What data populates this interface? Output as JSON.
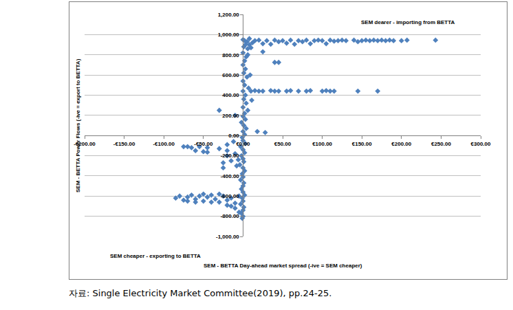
{
  "chart_data": {
    "type": "scatter",
    "x_label": "SEM - BETTA Day-ahead market spread (-ive = SEM cheaper)",
    "y_label": "SEM - BETTA Power Flows (-ive = export to BETTA)",
    "annotations": [
      "SEM dearer - importing from BETTA",
      "SEM cheaper - exporting to BETTA"
    ],
    "source": "자료: Single Electricity Market Committee(2019), pp.24-25.",
    "color": "#4f81bd",
    "marker": "diamond",
    "grid": true,
    "xlim": [
      -200,
      300
    ],
    "ylim": [
      -1000,
      1200
    ],
    "xticks": [
      {
        "value": -200,
        "label": "-€200.00"
      },
      {
        "value": -150,
        "label": "-€150.00"
      },
      {
        "value": -100,
        "label": "-€100.00"
      },
      {
        "value": -50,
        "label": "-€50.00"
      },
      {
        "value": 0,
        "label": "€0.00"
      },
      {
        "value": 50,
        "label": "€50.00"
      },
      {
        "value": 100,
        "label": "€100.00"
      },
      {
        "value": 150,
        "label": "€150.00"
      },
      {
        "value": 200,
        "label": "€200.00"
      },
      {
        "value": 250,
        "label": "€250.00"
      },
      {
        "value": 300,
        "label": "€300.00"
      }
    ],
    "yticks": [
      {
        "value": -1000,
        "label": "-1,000.00"
      },
      {
        "value": -800,
        "label": "-800.00"
      },
      {
        "value": -600,
        "label": "-600.00"
      },
      {
        "value": -400,
        "label": "-400.00"
      },
      {
        "value": -200,
        "label": "-200.00"
      },
      {
        "value": 0,
        "label": "0.00"
      },
      {
        "value": 200,
        "label": "200.00"
      },
      {
        "value": 400,
        "label": "400.00"
      },
      {
        "value": 600,
        "label": "600.00"
      },
      {
        "value": 800,
        "label": "800.00"
      },
      {
        "value": 1000,
        "label": "1,000.00"
      },
      {
        "value": 1200,
        "label": "1,200.00"
      }
    ],
    "x": [
      0,
      2,
      5,
      8,
      3,
      1,
      6,
      0,
      4,
      2,
      0,
      3,
      1,
      5,
      0,
      2,
      7,
      0,
      3,
      1,
      4,
      0,
      6,
      2,
      0,
      3,
      -2,
      1,
      4,
      0,
      2,
      -1,
      0,
      3,
      -3,
      0,
      2,
      -2,
      0,
      1,
      -4,
      0,
      2,
      -1,
      0,
      -3,
      1,
      0,
      -2,
      0,
      2,
      -1,
      0,
      -3,
      1,
      0,
      -2,
      0,
      -1,
      8,
      12,
      10,
      15,
      6,
      9,
      11,
      -6,
      -8,
      -10,
      -15,
      -20,
      -12,
      18,
      -25,
      -30,
      -10,
      28,
      -20,
      -25,
      20,
      25,
      30,
      35,
      40,
      45,
      50,
      55,
      60,
      65,
      70,
      75,
      80,
      85,
      90,
      95,
      100,
      105,
      110,
      115,
      120,
      125,
      130,
      140,
      145,
      150,
      155,
      160,
      165,
      170,
      175,
      180,
      185,
      190,
      200,
      207,
      243,
      25,
      10,
      15,
      20,
      25,
      35,
      40,
      45,
      55,
      60,
      70,
      80,
      85,
      100,
      105,
      110,
      115,
      145,
      170,
      40,
      45,
      -85,
      -80,
      -75,
      -70,
      -65,
      -60,
      -55,
      -50,
      -45,
      -40,
      -35,
      -30,
      -25,
      -20,
      -15,
      -10,
      -5,
      -50,
      -40,
      -30,
      -20,
      -60,
      -10,
      -5,
      -15,
      -70,
      -75,
      -70,
      -65,
      -60,
      -50,
      -45,
      -55,
      -45,
      -30,
      -20
    ],
    "values": [
      950,
      940,
      930,
      960,
      900,
      880,
      860,
      820,
      780,
      740,
      700,
      660,
      620,
      580,
      540,
      500,
      470,
      440,
      400,
      360,
      320,
      280,
      250,
      220,
      190,
      160,
      130,
      100,
      70,
      40,
      10,
      -20,
      -50,
      -80,
      -110,
      -140,
      -170,
      -200,
      -230,
      -260,
      -290,
      -320,
      -350,
      -380,
      -410,
      -440,
      -470,
      -500,
      -530,
      -560,
      -590,
      -620,
      -650,
      -680,
      -710,
      -740,
      -770,
      -800,
      -820,
      900,
      920,
      870,
      940,
      800,
      600,
      350,
      -240,
      -300,
      -180,
      -250,
      -90,
      -60,
      40,
      -270,
      250,
      200,
      30,
      -200,
      -320,
      945,
      910,
      940,
      905,
      945,
      930,
      940,
      915,
      945,
      905,
      940,
      930,
      945,
      910,
      940,
      945,
      940,
      910,
      945,
      935,
      940,
      945,
      940,
      945,
      930,
      940,
      945,
      940,
      945,
      940,
      945,
      940,
      945,
      940,
      940,
      945,
      945,
      830,
      440,
      445,
      440,
      440,
      445,
      440,
      440,
      440,
      445,
      440,
      440,
      445,
      440,
      445,
      440,
      440,
      440,
      440,
      725,
      725,
      -620,
      -600,
      -640,
      -610,
      -590,
      -630,
      -600,
      -650,
      -610,
      -590,
      -630,
      -660,
      -600,
      -640,
      -620,
      -670,
      -600,
      -580,
      -660,
      -580,
      -690,
      -660,
      -720,
      -760,
      -700,
      -650,
      -110,
      -110,
      -120,
      -150,
      -160,
      -165,
      -110,
      -120,
      -130,
      -150
    ]
  }
}
